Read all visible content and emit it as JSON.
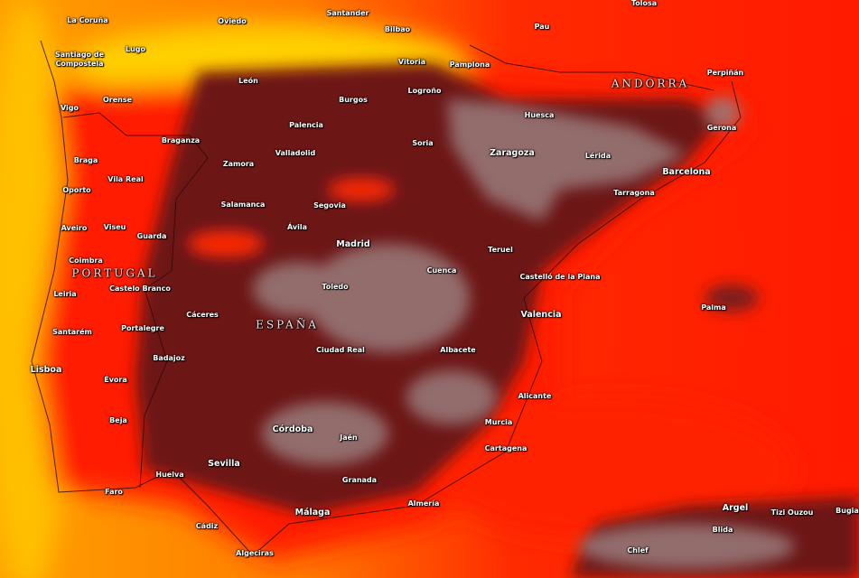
{
  "map": {
    "type": "temperature heat map",
    "colors": {
      "sea_cool": "#ffb000",
      "sea_warm": "#ff2a00",
      "coast": "#ff0a00",
      "interior": "#6a1414",
      "hottest": "#9a8080",
      "borders": "#2a0a0a"
    },
    "countries": [
      "PORTUGAL",
      "ESPAÑA",
      "ANDORRA"
    ],
    "cities": [
      "La Coruña",
      "Oviedo",
      "Santander",
      "Bilbao",
      "Tolosa",
      "Pau",
      "Santiago de Compostela",
      "Lugo",
      "Vitoria",
      "Pamplona",
      "Perpiñán",
      "León",
      "Burgos",
      "Logroño",
      "Orense",
      "Vigo",
      "Huesca",
      "Palencia",
      "Gerona",
      "Soria",
      "Braganza",
      "Zaragoza",
      "Lérida",
      "Valladolid",
      "Zamora",
      "Braga",
      "Barcelona",
      "Vila Real",
      "Oporto",
      "Tarragona",
      "Salamanca",
      "Segovia",
      "Ávila",
      "Aveiro",
      "Viseu",
      "Guarda",
      "Madrid",
      "Teruel",
      "Coimbra",
      "Cuenca",
      "Castelló de la Plana",
      "Leiria",
      "Castelo Branco",
      "Toledo",
      "Palma",
      "Cáceres",
      "Valencia",
      "Santarém",
      "Portalegre",
      "Ciudad Real",
      "Albacete",
      "Badajoz",
      "Lisboa",
      "Évora",
      "Alicante",
      "Beja",
      "Murcia",
      "Córdoba",
      "Jaén",
      "Cartagena",
      "Sevilla",
      "Huelva",
      "Granada",
      "Faro",
      "Almería",
      "Málaga",
      "Argel",
      "Tizi Ouzou",
      "Bugia",
      "Blida",
      "Cádiz",
      "Chlef",
      "Algeciras"
    ]
  }
}
